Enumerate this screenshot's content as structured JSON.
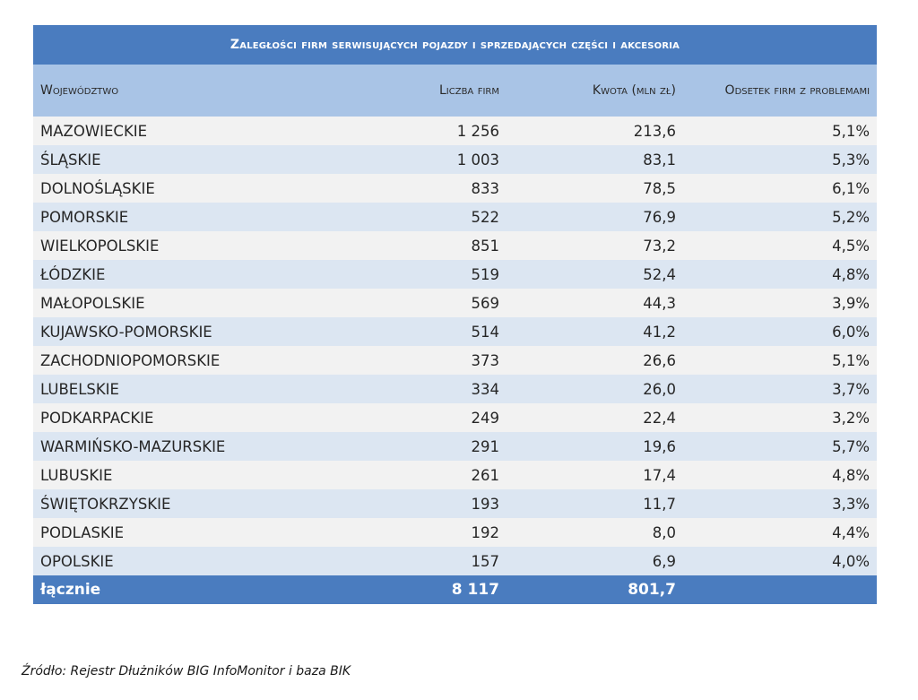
{
  "table": {
    "title": "Zaległości firm serwisujących pojazdy i sprzedających części i akcesoria",
    "headers": [
      "Województwo",
      "Liczba firm",
      "Kwota (mln zł)",
      "Odsetek firm z problemami"
    ],
    "rows": [
      [
        "MAZOWIECKIE",
        "1 256",
        "213,6",
        "5,1%"
      ],
      [
        "ŚLĄSKIE",
        "1 003",
        "83,1",
        "5,3%"
      ],
      [
        "DOLNOŚLĄSKIE",
        "833",
        "78,5",
        "6,1%"
      ],
      [
        "POMORSKIE",
        "522",
        "76,9",
        "5,2%"
      ],
      [
        "WIELKOPOLSKIE",
        "851",
        "73,2",
        "4,5%"
      ],
      [
        "ŁÓDZKIE",
        "519",
        "52,4",
        "4,8%"
      ],
      [
        "MAŁOPOLSKIE",
        "569",
        "44,3",
        "3,9%"
      ],
      [
        "KUJAWSKO-POMORSKIE",
        "514",
        "41,2",
        "6,0%"
      ],
      [
        "ZACHODNIOPOMORSKIE",
        "373",
        "26,6",
        "5,1%"
      ],
      [
        "LUBELSKIE",
        "334",
        "26,0",
        "3,7%"
      ],
      [
        "PODKARPACKIE",
        "249",
        "22,4",
        "3,2%"
      ],
      [
        "WARMIŃSKO-MAZURSKIE",
        "291",
        "19,6",
        "5,7%"
      ],
      [
        "LUBUSKIE",
        "261",
        "17,4",
        "4,8%"
      ],
      [
        "ŚWIĘTOKRZYSKIE",
        "193",
        "11,7",
        "3,3%"
      ],
      [
        "PODLASKIE",
        "192",
        "8,0",
        "4,4%"
      ],
      [
        "OPOLSKIE",
        "157",
        "6,9",
        "4,0%"
      ]
    ],
    "total": {
      "label": "łącznie",
      "firms": "8 117",
      "amount": "801,7",
      "percent": ""
    }
  },
  "source": "Źródło: Rejestr Dłużników BIG InfoMonitor i baza BIK",
  "colors": {
    "title_bg": "#4a7cbf",
    "header_bg": "#a9c4e6",
    "row_light": "#f2f2f2",
    "row_blue": "#dce6f2"
  }
}
